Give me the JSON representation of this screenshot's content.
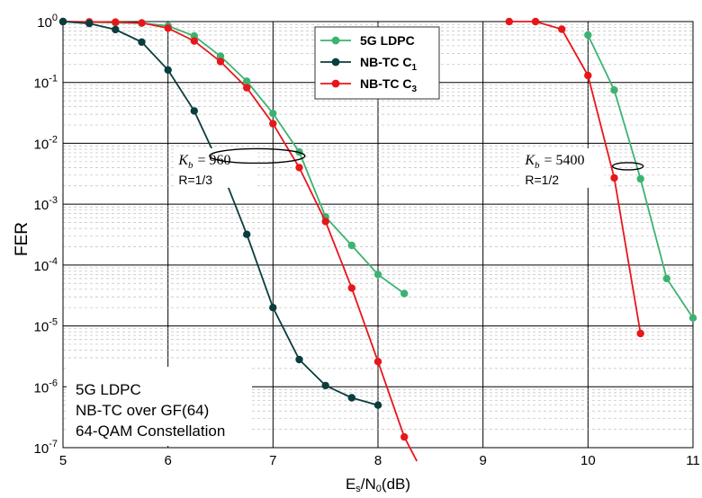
{
  "chart_data": {
    "type": "line",
    "xlabel_main": "E",
    "xlabel_sub": "s",
    "xlabel_mid": "/N",
    "xlabel_sub2": "0",
    "xlabel_tail": "(dB)",
    "ylabel": "FER",
    "xlim": [
      5,
      11
    ],
    "ylim_exp": [
      -7,
      0
    ],
    "y_scale": "log",
    "grid": true,
    "x_ticks": [
      "5",
      "6",
      "7",
      "8",
      "9",
      "10",
      "11"
    ],
    "y_ticks": [
      {
        "base": "10",
        "exp": "0"
      },
      {
        "base": "10",
        "exp": "-1"
      },
      {
        "base": "10",
        "exp": "-2"
      },
      {
        "base": "10",
        "exp": "-3"
      },
      {
        "base": "10",
        "exp": "-4"
      },
      {
        "base": "10",
        "exp": "-5"
      },
      {
        "base": "10",
        "exp": "-6"
      },
      {
        "base": "10",
        "exp": "-7"
      }
    ],
    "legend": {
      "placement": "top-center",
      "entries": [
        {
          "label": "5G LDPC",
          "sub": "",
          "series": 0
        },
        {
          "label": "NB-TC C",
          "sub": "1",
          "series": 1
        },
        {
          "label": "NB-TC C",
          "sub": "3",
          "series": 2
        }
      ]
    },
    "series": [
      {
        "name": "5G LDPC",
        "color": "#3cb371",
        "segments": [
          [
            [
              5.0,
              1.0
            ],
            [
              5.25,
              0.98
            ],
            [
              5.5,
              0.96
            ],
            [
              5.75,
              0.94
            ],
            [
              6.0,
              0.85
            ],
            [
              6.25,
              0.58
            ],
            [
              6.5,
              0.27
            ],
            [
              6.75,
              0.105
            ],
            [
              7.0,
              0.031
            ],
            [
              7.25,
              0.0072
            ],
            [
              7.5,
              0.00062
            ],
            [
              7.75,
              0.00021
            ],
            [
              8.0,
              7e-05
            ],
            [
              8.25,
              3.4e-05
            ]
          ],
          [
            [
              10.0,
              0.6
            ],
            [
              10.25,
              0.075
            ],
            [
              10.5,
              0.0026
            ],
            [
              10.75,
              6e-05
            ],
            [
              11.0,
              1.35e-05
            ]
          ]
        ]
      },
      {
        "name": "NB-TC C1",
        "color": "#0a3d3d",
        "segments": [
          [
            [
              5.0,
              1.0
            ],
            [
              5.25,
              0.93
            ],
            [
              5.5,
              0.74
            ],
            [
              5.75,
              0.46
            ],
            [
              6.0,
              0.16
            ],
            [
              6.25,
              0.034
            ],
            [
              6.5,
              0.004
            ],
            [
              6.75,
              0.00032
            ],
            [
              7.0,
              2e-05
            ],
            [
              7.25,
              2.8e-06
            ],
            [
              7.5,
              1.05e-06
            ],
            [
              7.75,
              6.6e-07
            ],
            [
              8.0,
              5e-07
            ]
          ]
        ]
      },
      {
        "name": "NB-TC C3",
        "color": "#e8161b",
        "segments": [
          [
            [
              5.0,
              1.0
            ],
            [
              5.25,
              0.99
            ],
            [
              5.5,
              0.98
            ],
            [
              5.75,
              0.95
            ],
            [
              6.0,
              0.78
            ],
            [
              6.25,
              0.48
            ],
            [
              6.5,
              0.22
            ],
            [
              6.75,
              0.082
            ],
            [
              7.0,
              0.021
            ],
            [
              7.25,
              0.004
            ],
            [
              7.5,
              0.00052
            ],
            [
              7.75,
              4.2e-05
            ],
            [
              8.0,
              2.6e-06
            ],
            [
              8.25,
              1.5e-07
            ],
            [
              8.37,
              6e-08
            ]
          ],
          [
            [
              9.25,
              1.0
            ],
            [
              9.5,
              1.0
            ],
            [
              9.75,
              0.75
            ],
            [
              10.0,
              0.13
            ],
            [
              10.25,
              0.0027
            ],
            [
              10.5,
              7.5e-06
            ]
          ]
        ]
      }
    ],
    "annotations": [
      {
        "kb_var": "K",
        "kb_sub": "b",
        "kb_value": "= 960",
        "rate": "R=1/3",
        "x": 6.1,
        "y": 0.0045,
        "ellipse_center": [
          6.85,
          0.0062
        ]
      },
      {
        "kb_var": "K",
        "kb_sub": "b",
        "kb_value": "= 5400",
        "rate": "R=1/2",
        "x": 9.4,
        "y": 0.0045,
        "ellipse_center": [
          10.38,
          0.0042
        ]
      }
    ],
    "info_box": [
      "5G LDPC",
      "NB-TC over GF(64)",
      "64-QAM Constellation"
    ]
  }
}
